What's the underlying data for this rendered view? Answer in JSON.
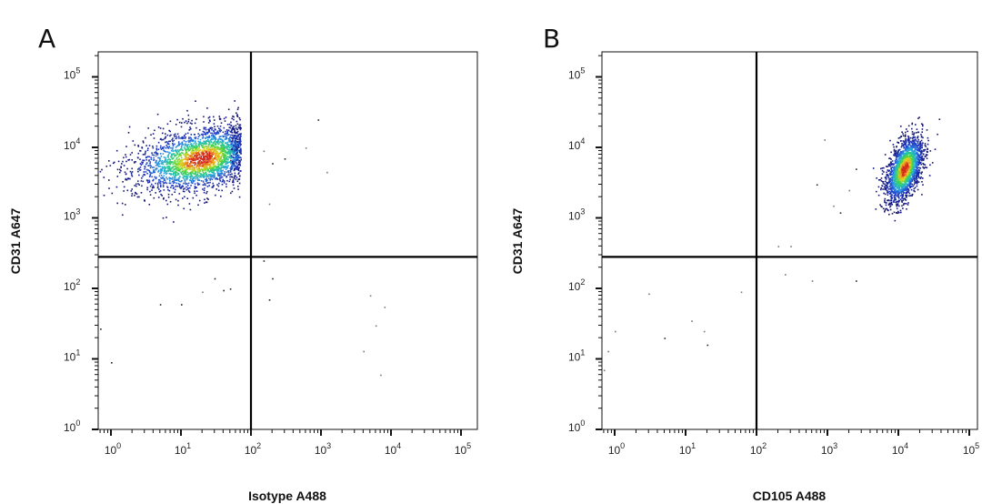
{
  "chart_data": [
    {
      "type": "scatter",
      "panel_label": "A",
      "xlabel": "Isotype A488",
      "ylabel": "CD31 A647",
      "xscale": "log",
      "yscale": "log",
      "xlim": [
        0.6,
        150000
      ],
      "ylim": [
        1,
        150000
      ],
      "x_tick_labels": [
        {
          "base": "10",
          "exp": "0"
        },
        {
          "base": "10",
          "exp": "1"
        },
        {
          "base": "10",
          "exp": "2"
        },
        {
          "base": "10",
          "exp": "3"
        },
        {
          "base": "10",
          "exp": "4"
        },
        {
          "base": "10",
          "exp": "5"
        }
      ],
      "y_tick_labels": [
        {
          "base": "10",
          "exp": "0"
        },
        {
          "base": "10",
          "exp": "1"
        },
        {
          "base": "10",
          "exp": "2"
        },
        {
          "base": "10",
          "exp": "3"
        },
        {
          "base": "10",
          "exp": "4"
        },
        {
          "base": "10",
          "exp": "5"
        }
      ],
      "quadrant_gate": {
        "x": 100,
        "y": 280
      },
      "color_scale": "density (blue-green-yellow-red)",
      "population": {
        "center_x": 20,
        "center_y": 7000,
        "spread_x_decades": 0.38,
        "spread_y_decades": 0.22,
        "quadrant": "upper-left"
      },
      "outliers": [
        [
          150,
          9000
        ],
        [
          200,
          6000
        ],
        [
          300,
          7000
        ],
        [
          600,
          10000
        ],
        [
          1200,
          4500
        ],
        [
          900,
          25000
        ],
        [
          180,
          1600
        ],
        [
          150,
          250
        ],
        [
          200,
          140
        ],
        [
          180,
          70
        ],
        [
          5000,
          80
        ],
        [
          6000,
          30
        ],
        [
          4000,
          13
        ],
        [
          7000,
          6
        ],
        [
          8000,
          55
        ],
        [
          50,
          100
        ],
        [
          20,
          90
        ],
        [
          30,
          140
        ],
        [
          10,
          60
        ],
        [
          5,
          60
        ],
        [
          1,
          9
        ],
        [
          0.7,
          27
        ],
        [
          40,
          95
        ]
      ]
    },
    {
      "type": "scatter",
      "panel_label": "B",
      "xlabel": "CD105 A488",
      "ylabel": "CD31 A647",
      "xscale": "log",
      "yscale": "log",
      "xlim": [
        0.6,
        150000
      ],
      "ylim": [
        1,
        150000
      ],
      "x_tick_labels": [
        {
          "base": "10",
          "exp": "0"
        },
        {
          "base": "10",
          "exp": "1"
        },
        {
          "base": "10",
          "exp": "2"
        },
        {
          "base": "10",
          "exp": "3"
        },
        {
          "base": "10",
          "exp": "4"
        },
        {
          "base": "10",
          "exp": "5"
        }
      ],
      "y_tick_labels": [
        {
          "base": "10",
          "exp": "0"
        },
        {
          "base": "10",
          "exp": "1"
        },
        {
          "base": "10",
          "exp": "2"
        },
        {
          "base": "10",
          "exp": "3"
        },
        {
          "base": "10",
          "exp": "4"
        },
        {
          "base": "10",
          "exp": "5"
        }
      ],
      "quadrant_gate": {
        "x": 100,
        "y": 280
      },
      "color_scale": "density (blue-green-yellow-red)",
      "population": {
        "center_x": 12000,
        "center_y": 5000,
        "spread_x_decades": 0.13,
        "spread_y_decades": 0.2,
        "quadrant": "upper-right"
      },
      "outliers": [
        [
          900,
          13000
        ],
        [
          700,
          3000
        ],
        [
          1200,
          1500
        ],
        [
          1500,
          1200
        ],
        [
          200,
          400
        ],
        [
          300,
          400
        ],
        [
          250,
          160
        ],
        [
          600,
          130
        ],
        [
          2500,
          130
        ],
        [
          60,
          90
        ],
        [
          3,
          85
        ],
        [
          1,
          25
        ],
        [
          0.8,
          13
        ],
        [
          0.7,
          7
        ],
        [
          12,
          35
        ],
        [
          18,
          25
        ],
        [
          20,
          16
        ],
        [
          5,
          20
        ],
        [
          2500,
          5000
        ],
        [
          2000,
          2500
        ]
      ]
    }
  ]
}
